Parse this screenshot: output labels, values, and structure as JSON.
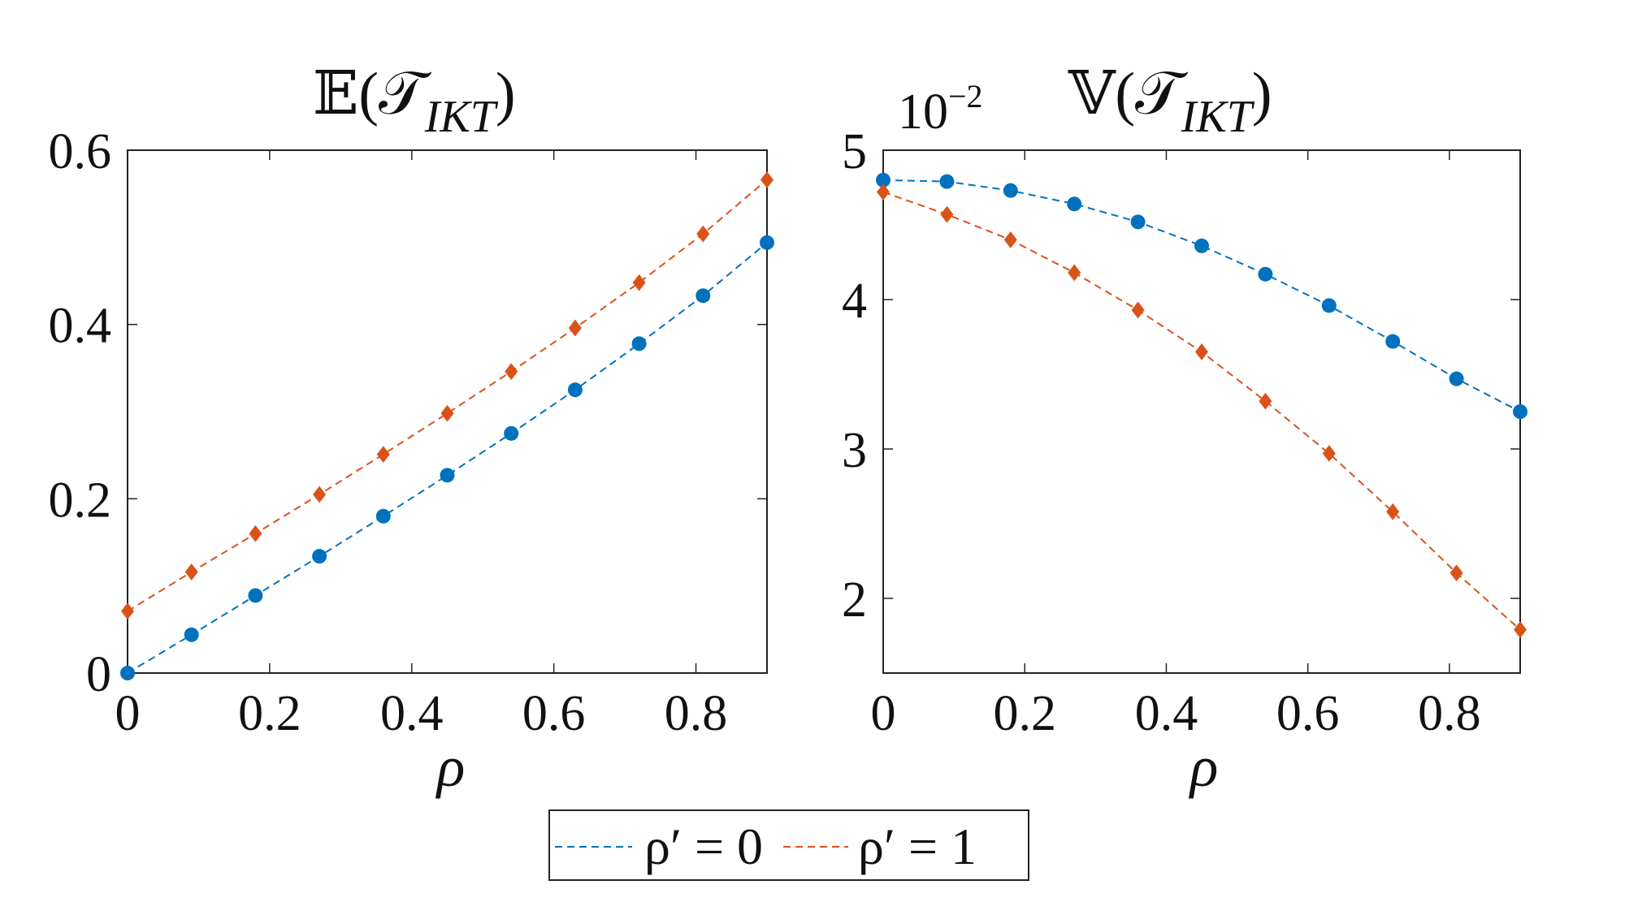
{
  "chart_data": [
    {
      "type": "line",
      "title": {
        "main": "𝔼(𝒯",
        "sub": "IKT",
        "close": ")"
      },
      "xlabel": "ρ",
      "ylabel": "",
      "xlim": [
        0,
        0.9
      ],
      "ylim": [
        0,
        0.6
      ],
      "xticks": [
        0,
        0.2,
        0.4,
        0.6,
        0.8
      ],
      "xtick_labels": [
        "0",
        "0.2",
        "0.4",
        "0.6",
        "0.8"
      ],
      "yticks": [
        0,
        0.2,
        0.4,
        0.6
      ],
      "ytick_labels": [
        "0",
        "0.2",
        "0.4",
        "0.6"
      ],
      "x": [
        0,
        0.09,
        0.18,
        0.27,
        0.36,
        0.45,
        0.54,
        0.63,
        0.72,
        0.81,
        0.9
      ],
      "series": [
        {
          "name": "ρ′ = 0",
          "marker": "circle",
          "color": "#0072BD",
          "values": [
            0.0,
            0.044,
            0.089,
            0.134,
            0.18,
            0.227,
            0.275,
            0.325,
            0.378,
            0.433,
            0.494
          ]
        },
        {
          "name": "ρ′ = 1",
          "marker": "diamond",
          "color": "#D95319",
          "values": [
            0.071,
            0.116,
            0.16,
            0.205,
            0.251,
            0.298,
            0.346,
            0.396,
            0.448,
            0.504,
            0.566
          ]
        }
      ]
    },
    {
      "type": "line",
      "title": {
        "main": "𝕍(𝒯",
        "sub": "IKT",
        "close": ")"
      },
      "scale_label": {
        "base": "10",
        "exp": "−2"
      },
      "xlabel": "ρ",
      "ylabel": "",
      "xlim": [
        0,
        0.9
      ],
      "ylim": [
        1.5,
        5.0
      ],
      "xticks": [
        0,
        0.2,
        0.4,
        0.6,
        0.8
      ],
      "xtick_labels": [
        "0",
        "0.2",
        "0.4",
        "0.6",
        "0.8"
      ],
      "yticks": [
        2,
        3,
        4,
        5
      ],
      "ytick_labels": [
        "2",
        "3",
        "4",
        "5"
      ],
      "x": [
        0,
        0.09,
        0.18,
        0.27,
        0.36,
        0.45,
        0.54,
        0.63,
        0.72,
        0.81,
        0.9
      ],
      "series": [
        {
          "name": "ρ′ = 0",
          "marker": "circle",
          "color": "#0072BD",
          "values": [
            4.8,
            4.79,
            4.73,
            4.64,
            4.52,
            4.36,
            4.17,
            3.96,
            3.72,
            3.47,
            3.25
          ]
        },
        {
          "name": "ρ′ = 1",
          "marker": "diamond",
          "color": "#D95319",
          "values": [
            4.72,
            4.57,
            4.4,
            4.18,
            3.93,
            3.65,
            3.32,
            2.97,
            2.58,
            2.17,
            1.79
          ]
        }
      ]
    }
  ],
  "legend": {
    "placement": "bottom-center",
    "entries": [
      {
        "label": "ρ′ = 0",
        "color": "#0072BD"
      },
      {
        "label": "ρ′ = 1",
        "color": "#D95319"
      }
    ]
  }
}
